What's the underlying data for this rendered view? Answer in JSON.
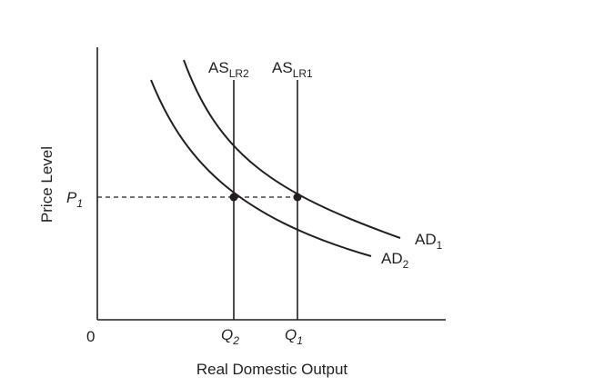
{
  "axes": {
    "y_label": "Price Level",
    "x_label": "Real Domestic Output",
    "origin_label": "0"
  },
  "price_marker": {
    "main": "P",
    "sub": "1"
  },
  "output_markers": [
    {
      "main": "Q",
      "sub": "2"
    },
    {
      "main": "Q",
      "sub": "1"
    }
  ],
  "supply_curves": [
    {
      "main": "AS",
      "sub": "LR2"
    },
    {
      "main": "AS",
      "sub": "LR1"
    }
  ],
  "demand_curves": [
    {
      "main": "AD",
      "sub": "1"
    },
    {
      "main": "AD",
      "sub": "2"
    }
  ],
  "colors": {
    "ink": "#231f20",
    "background": "#ffffff"
  }
}
